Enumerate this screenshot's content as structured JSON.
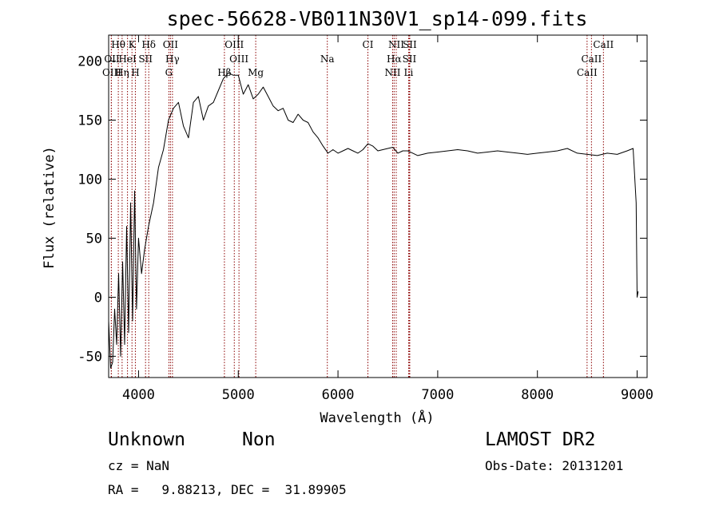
{
  "chart_data": {
    "type": "line",
    "title": "spec-56628-VB011N30V1_sp14-099.fits",
    "xlabel": "Wavelength (Å)",
    "ylabel": "Flux (relative)",
    "xlim": [
      3700,
      9100
    ],
    "ylim": [
      -68,
      222
    ],
    "xticks": [
      4000,
      5000,
      6000,
      7000,
      8000,
      9000
    ],
    "yticks": [
      -50,
      0,
      50,
      100,
      150,
      200
    ],
    "grid": false,
    "line_color": "#000000",
    "marker_color": "#8b0000",
    "series": [
      {
        "x": [
          3700,
          3720,
          3740,
          3760,
          3780,
          3800,
          3820,
          3840,
          3860,
          3880,
          3900,
          3920,
          3940,
          3960,
          3980,
          4000,
          4030,
          4060,
          4100,
          4150,
          4200,
          4250,
          4300,
          4350,
          4400,
          4450,
          4500,
          4550,
          4600,
          4650,
          4700,
          4750,
          4800,
          4850,
          4900,
          4950,
          5000,
          5050,
          5100,
          5150,
          5200,
          5250,
          5300,
          5350,
          5400,
          5450,
          5500,
          5550,
          5600,
          5650,
          5700,
          5750,
          5800,
          5850,
          5900,
          5950,
          6000,
          6050,
          6100,
          6150,
          6200,
          6250,
          6300,
          6350,
          6400,
          6450,
          6500,
          6550,
          6600,
          6650,
          6700,
          6750,
          6800,
          6900,
          7000,
          7100,
          7200,
          7300,
          7400,
          7500,
          7600,
          7700,
          7800,
          7900,
          8000,
          8100,
          8200,
          8300,
          8400,
          8500,
          8600,
          8700,
          8800,
          8900,
          8960,
          8990,
          9000,
          9010
        ],
        "y": [
          -20,
          -60,
          -55,
          -10,
          -40,
          20,
          -50,
          30,
          -40,
          60,
          -30,
          80,
          -20,
          90,
          -10,
          50,
          20,
          40,
          60,
          80,
          110,
          125,
          150,
          160,
          165,
          145,
          135,
          165,
          170,
          150,
          162,
          165,
          175,
          185,
          190,
          188,
          188,
          172,
          180,
          168,
          172,
          178,
          170,
          162,
          158,
          160,
          150,
          148,
          155,
          150,
          148,
          140,
          135,
          128,
          122,
          125,
          122,
          124,
          126,
          124,
          122,
          125,
          130,
          128,
          124,
          125,
          126,
          127,
          122,
          124,
          124,
          122,
          120,
          122,
          123,
          124,
          125,
          124,
          122,
          123,
          124,
          123,
          122,
          121,
          122,
          123,
          124,
          126,
          122,
          121,
          120,
          122,
          121,
          124,
          126,
          80,
          0,
          5
        ]
      }
    ],
    "annotations": [
      {
        "label": "Hθ",
        "x": 3797,
        "row": 1
      },
      {
        "label": "K",
        "x": 3934,
        "row": 1
      },
      {
        "label": "Hδ",
        "x": 4102,
        "row": 1
      },
      {
        "label": "OII",
        "x": 4320,
        "row": 1
      },
      {
        "label": "OIII",
        "x": 4960,
        "row": 1
      },
      {
        "label": "CI",
        "x": 6300,
        "row": 1
      },
      {
        "label": "NII",
        "x": 6584,
        "row": 1
      },
      {
        "label": "SII",
        "x": 6720,
        "row": 1
      },
      {
        "label": "CaII",
        "x": 8662,
        "row": 1
      },
      {
        "label": "OII",
        "x": 3727,
        "row": 2
      },
      {
        "label": "HeI",
        "x": 3889,
        "row": 2
      },
      {
        "label": "SII",
        "x": 4070,
        "row": 2
      },
      {
        "label": "Hγ",
        "x": 4340,
        "row": 2
      },
      {
        "label": "OIII",
        "x": 5007,
        "row": 2
      },
      {
        "label": "Na",
        "x": 5893,
        "row": 2
      },
      {
        "label": "Hα",
        "x": 6563,
        "row": 2
      },
      {
        "label": "SII",
        "x": 6716,
        "row": 2
      },
      {
        "label": "CaII",
        "x": 8542,
        "row": 2
      },
      {
        "label": "OIII",
        "x": 3727,
        "row": 3
      },
      {
        "label": "Hη",
        "x": 3835,
        "row": 3
      },
      {
        "label": "H",
        "x": 3968,
        "row": 3
      },
      {
        "label": "G",
        "x": 4304,
        "row": 3
      },
      {
        "label": "Hβ",
        "x": 4861,
        "row": 3
      },
      {
        "label": "Mg",
        "x": 5175,
        "row": 3
      },
      {
        "label": "NII",
        "x": 6548,
        "row": 3
      },
      {
        "label": "Li",
        "x": 6708,
        "row": 3
      },
      {
        "label": "CaII",
        "x": 8498,
        "row": 3
      }
    ]
  },
  "info": {
    "obj_class": "Unknown",
    "obj_subclass": "Non",
    "cz": "cz = NaN",
    "radec": "RA =   9.88213, DEC =  31.89905",
    "survey": "LAMOST DR2",
    "obs_date": "Obs-Date: 20131201"
  }
}
